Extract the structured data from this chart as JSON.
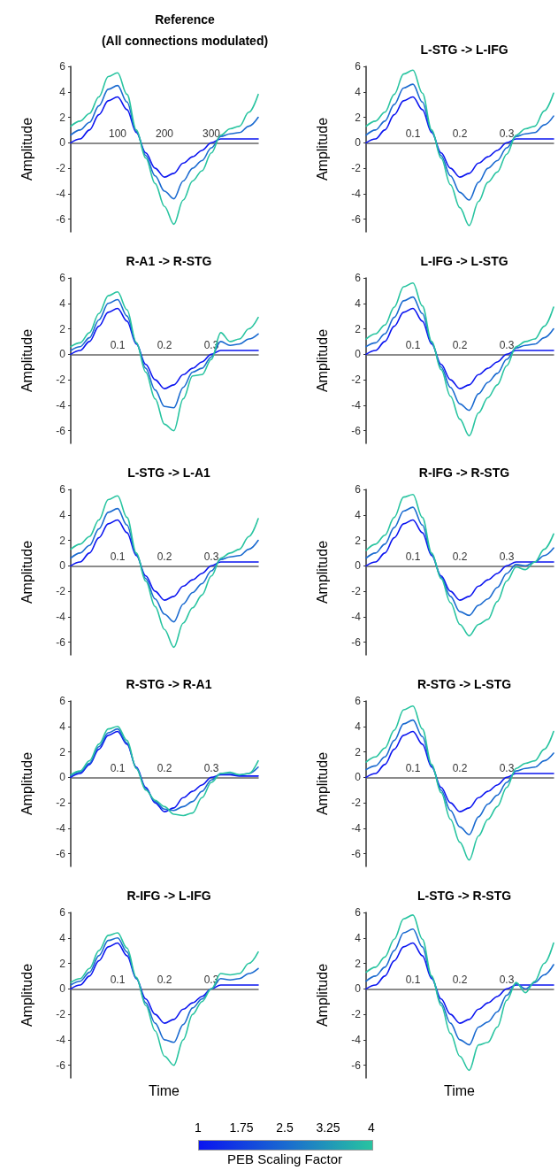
{
  "chart_data": [
    {
      "type": "line",
      "title": "Reference",
      "subtitle": "(All connections modulated)",
      "ylabel": "Amplitude",
      "x": [
        0,
        20,
        40,
        60,
        80,
        100,
        120,
        140,
        160,
        180,
        200,
        220,
        240,
        260,
        280,
        300,
        320,
        340,
        360,
        380,
        400
      ],
      "xlim": [
        0,
        400
      ],
      "xticks": [
        100,
        200,
        300
      ],
      "ylim": [
        -7,
        6
      ],
      "yticks": [
        -6,
        -4,
        -2,
        0,
        2,
        4,
        6
      ],
      "grid": false,
      "marker": "none",
      "line_style": "solid",
      "series": [
        {
          "color": "#0a14f0",
          "values": [
            0,
            0.3,
            1.0,
            2.2,
            3.3,
            3.6,
            2.6,
            0.8,
            -0.8,
            -2.0,
            -2.7,
            -2.4,
            -1.6,
            -1.1,
            -0.6,
            0,
            0.3,
            0.3,
            0.3,
            0.3,
            0.3
          ]
        },
        {
          "color": "#1a6ad0",
          "values": [
            0.6,
            1.0,
            1.6,
            2.9,
            4.2,
            4.5,
            3.2,
            0.9,
            -1.0,
            -2.6,
            -3.8,
            -4.4,
            -3.0,
            -2.0,
            -1.4,
            -0.4,
            0.5,
            0.7,
            0.8,
            1.3,
            2.0
          ]
        },
        {
          "color": "#28c4a0",
          "values": [
            1.3,
            1.7,
            2.3,
            3.6,
            5.2,
            5.5,
            3.8,
            1.0,
            -1.2,
            -3.2,
            -5.0,
            -6.4,
            -4.5,
            -3.0,
            -2.2,
            -0.8,
            0.6,
            1.1,
            1.3,
            2.4,
            3.8
          ]
        }
      ]
    },
    {
      "type": "line",
      "title": "L-STG -> L-IFG",
      "ylabel": "Amplitude",
      "x": [
        0,
        0.02,
        0.04,
        0.06,
        0.08,
        0.1,
        0.12,
        0.14,
        0.16,
        0.18,
        0.2,
        0.22,
        0.24,
        0.26,
        0.28,
        0.3,
        0.32,
        0.34,
        0.36,
        0.38,
        0.4
      ],
      "xlim": [
        0,
        0.4
      ],
      "xticks": [
        0.1,
        0.2,
        0.3
      ],
      "ylim": [
        -7,
        6
      ],
      "yticks": [
        -6,
        -4,
        -2,
        0,
        2,
        4,
        6
      ],
      "grid": false,
      "marker": "none",
      "line_style": "solid",
      "series": [
        {
          "color": "#0a14f0",
          "values": [
            0,
            0.3,
            1.0,
            2.2,
            3.3,
            3.6,
            2.6,
            0.8,
            -0.8,
            -2.0,
            -2.7,
            -2.4,
            -1.6,
            -1.1,
            -0.6,
            0,
            0.3,
            0.3,
            0.3,
            0.3,
            0.3
          ]
        },
        {
          "color": "#1a6ad0",
          "values": [
            0.6,
            1.0,
            1.7,
            3.0,
            4.3,
            4.6,
            3.2,
            0.9,
            -1.0,
            -2.6,
            -3.9,
            -4.5,
            -3.1,
            -2.0,
            -1.4,
            -0.4,
            0.5,
            0.7,
            0.8,
            1.4,
            2.1
          ]
        },
        {
          "color": "#28c4a0",
          "values": [
            1.3,
            1.7,
            2.4,
            3.8,
            5.4,
            5.7,
            3.9,
            1.0,
            -1.2,
            -3.3,
            -5.1,
            -6.5,
            -4.6,
            -3.1,
            -2.3,
            -0.9,
            0.6,
            1.1,
            1.3,
            2.5,
            3.9
          ]
        }
      ]
    },
    {
      "type": "line",
      "title": "R-A1 -> R-STG",
      "ylabel": "Amplitude",
      "x": [
        0,
        0.02,
        0.04,
        0.06,
        0.08,
        0.1,
        0.12,
        0.14,
        0.16,
        0.18,
        0.2,
        0.22,
        0.24,
        0.26,
        0.28,
        0.3,
        0.32,
        0.34,
        0.36,
        0.38,
        0.4
      ],
      "xlim": [
        0,
        0.4
      ],
      "xticks": [
        0.1,
        0.2,
        0.3
      ],
      "ylim": [
        -7,
        6
      ],
      "yticks": [
        -6,
        -4,
        -2,
        0,
        2,
        4,
        6
      ],
      "grid": false,
      "marker": "none",
      "line_style": "solid",
      "series": [
        {
          "color": "#0a14f0",
          "values": [
            0,
            0.3,
            1.0,
            2.2,
            3.3,
            3.6,
            2.6,
            0.8,
            -0.8,
            -2.0,
            -2.7,
            -2.4,
            -1.6,
            -1.1,
            -0.6,
            0,
            0.3,
            0.3,
            0.3,
            0.3,
            0.3
          ]
        },
        {
          "color": "#1a6ad0",
          "values": [
            0.3,
            0.6,
            1.3,
            2.7,
            4.0,
            4.3,
            3.0,
            0.9,
            -1.1,
            -2.8,
            -4.1,
            -4.2,
            -2.6,
            -1.4,
            -1.1,
            -0.2,
            1.0,
            0.7,
            0.8,
            1.2,
            1.6
          ]
        },
        {
          "color": "#28c4a0",
          "values": [
            0.6,
            0.9,
            1.7,
            3.2,
            4.6,
            4.9,
            3.5,
            0.9,
            -1.4,
            -3.5,
            -5.5,
            -6.0,
            -3.5,
            -1.7,
            -1.6,
            -0.4,
            1.7,
            1.0,
            1.2,
            2.0,
            2.9
          ]
        }
      ]
    },
    {
      "type": "line",
      "title": "L-IFG -> L-STG",
      "ylabel": "Amplitude",
      "x": [
        0,
        0.02,
        0.04,
        0.06,
        0.08,
        0.1,
        0.12,
        0.14,
        0.16,
        0.18,
        0.2,
        0.22,
        0.24,
        0.26,
        0.28,
        0.3,
        0.32,
        0.34,
        0.36,
        0.38,
        0.4
      ],
      "xlim": [
        0,
        0.4
      ],
      "xticks": [
        0.1,
        0.2,
        0.3
      ],
      "ylim": [
        -7,
        6
      ],
      "yticks": [
        -6,
        -4,
        -2,
        0,
        2,
        4,
        6
      ],
      "grid": false,
      "marker": "none",
      "line_style": "solid",
      "series": [
        {
          "color": "#0a14f0",
          "values": [
            0,
            0.3,
            1.0,
            2.2,
            3.3,
            3.6,
            2.6,
            0.8,
            -0.8,
            -2.0,
            -2.7,
            -2.4,
            -1.6,
            -1.1,
            -0.6,
            0,
            0.3,
            0.3,
            0.3,
            0.3,
            0.3
          ]
        },
        {
          "color": "#1a6ad0",
          "values": [
            0.6,
            0.9,
            1.6,
            2.9,
            4.2,
            4.5,
            3.2,
            0.9,
            -1.0,
            -2.6,
            -3.9,
            -4.4,
            -3.1,
            -2.2,
            -1.5,
            -0.4,
            0.5,
            0.7,
            0.8,
            1.3,
            2.0
          ]
        },
        {
          "color": "#28c4a0",
          "values": [
            1.2,
            1.6,
            2.3,
            3.7,
            5.3,
            5.6,
            3.8,
            1.0,
            -1.2,
            -3.3,
            -5.1,
            -6.4,
            -4.6,
            -3.4,
            -2.4,
            -0.9,
            0.6,
            1.0,
            1.2,
            2.2,
            3.7
          ]
        }
      ]
    },
    {
      "type": "line",
      "title": "L-STG -> L-A1",
      "ylabel": "Amplitude",
      "x": [
        0,
        0.02,
        0.04,
        0.06,
        0.08,
        0.1,
        0.12,
        0.14,
        0.16,
        0.18,
        0.2,
        0.22,
        0.24,
        0.26,
        0.28,
        0.3,
        0.32,
        0.34,
        0.36,
        0.38,
        0.4
      ],
      "xlim": [
        0,
        0.4
      ],
      "xticks": [
        0.1,
        0.2,
        0.3
      ],
      "ylim": [
        -7,
        6
      ],
      "yticks": [
        -6,
        -4,
        -2,
        0,
        2,
        4,
        6
      ],
      "grid": false,
      "marker": "none",
      "line_style": "solid",
      "series": [
        {
          "color": "#0a14f0",
          "values": [
            0,
            0.3,
            1.0,
            2.2,
            3.3,
            3.6,
            2.6,
            0.8,
            -0.8,
            -2.0,
            -2.7,
            -2.4,
            -1.6,
            -1.1,
            -0.6,
            0,
            0.3,
            0.3,
            0.3,
            0.3,
            0.3
          ]
        },
        {
          "color": "#1a6ad0",
          "values": [
            0.6,
            1.0,
            1.6,
            2.9,
            4.2,
            4.5,
            3.2,
            0.9,
            -1.0,
            -2.6,
            -3.8,
            -4.4,
            -3.0,
            -2.1,
            -1.4,
            -0.4,
            0.5,
            0.7,
            0.8,
            1.3,
            2.0
          ]
        },
        {
          "color": "#28c4a0",
          "values": [
            1.3,
            1.7,
            2.3,
            3.6,
            5.2,
            5.5,
            3.8,
            1.0,
            -1.2,
            -3.2,
            -5.0,
            -6.4,
            -4.5,
            -3.3,
            -2.3,
            -0.8,
            0.6,
            1.0,
            1.3,
            2.3,
            3.7
          ]
        }
      ]
    },
    {
      "type": "line",
      "title": "R-IFG -> R-STG",
      "ylabel": "Amplitude",
      "x": [
        0,
        0.02,
        0.04,
        0.06,
        0.08,
        0.1,
        0.12,
        0.14,
        0.16,
        0.18,
        0.2,
        0.22,
        0.24,
        0.26,
        0.28,
        0.3,
        0.32,
        0.34,
        0.36,
        0.38,
        0.4
      ],
      "xlim": [
        0,
        0.4
      ],
      "xticks": [
        0.1,
        0.2,
        0.3
      ],
      "ylim": [
        -7,
        6
      ],
      "yticks": [
        -6,
        -4,
        -2,
        0,
        2,
        4,
        6
      ],
      "grid": false,
      "marker": "none",
      "line_style": "solid",
      "series": [
        {
          "color": "#0a14f0",
          "values": [
            0,
            0.3,
            1.0,
            2.2,
            3.3,
            3.6,
            2.6,
            0.8,
            -0.8,
            -2.0,
            -2.7,
            -2.4,
            -1.6,
            -1.1,
            -0.6,
            0,
            0.3,
            0.3,
            0.3,
            0.3,
            0.3
          ]
        },
        {
          "color": "#1a6ad0",
          "values": [
            0.6,
            1.0,
            1.7,
            3.0,
            4.3,
            4.6,
            3.2,
            0.9,
            -0.9,
            -2.4,
            -3.6,
            -3.9,
            -3.1,
            -2.6,
            -1.7,
            -0.6,
            0.1,
            0.0,
            0.3,
            0.8,
            1.4
          ]
        },
        {
          "color": "#28c4a0",
          "values": [
            1.2,
            1.7,
            2.4,
            3.8,
            5.4,
            5.6,
            3.8,
            1.0,
            -1.0,
            -2.9,
            -4.6,
            -5.5,
            -4.6,
            -4.2,
            -2.8,
            -1.2,
            -0.1,
            -0.3,
            0.3,
            1.3,
            2.5
          ]
        }
      ]
    },
    {
      "type": "line",
      "title": "R-STG -> R-A1",
      "ylabel": "Amplitude",
      "x": [
        0,
        0.02,
        0.04,
        0.06,
        0.08,
        0.1,
        0.12,
        0.14,
        0.16,
        0.18,
        0.2,
        0.22,
        0.24,
        0.26,
        0.28,
        0.3,
        0.32,
        0.34,
        0.36,
        0.38,
        0.4
      ],
      "xlim": [
        0,
        0.4
      ],
      "xticks": [
        0.1,
        0.2,
        0.3
      ],
      "ylim": [
        -7,
        6
      ],
      "yticks": [
        -6,
        -4,
        -2,
        0,
        2,
        4,
        6
      ],
      "grid": false,
      "marker": "none",
      "line_style": "solid",
      "series": [
        {
          "color": "#0a14f0",
          "values": [
            0,
            0.3,
            1.0,
            2.2,
            3.3,
            3.6,
            2.6,
            0.8,
            -0.8,
            -2.0,
            -2.7,
            -2.4,
            -1.6,
            -1.1,
            -0.6,
            0,
            0.2,
            0.2,
            0.1,
            0.1,
            0.1
          ]
        },
        {
          "color": "#1a6ad0",
          "values": [
            0.1,
            0.4,
            1.1,
            2.4,
            3.5,
            3.8,
            2.7,
            0.7,
            -0.9,
            -1.9,
            -2.5,
            -2.6,
            -2.3,
            -1.9,
            -1.1,
            -0.2,
            0.3,
            0.3,
            0.2,
            0.3,
            0.8
          ]
        },
        {
          "color": "#28c4a0",
          "values": [
            0.2,
            0.5,
            1.3,
            2.6,
            3.8,
            4.0,
            2.9,
            0.7,
            -1.0,
            -1.8,
            -2.3,
            -2.9,
            -3.0,
            -2.8,
            -1.6,
            -0.4,
            0.3,
            0.4,
            0.2,
            0.3,
            1.3
          ]
        }
      ]
    },
    {
      "type": "line",
      "title": "R-STG -> L-STG",
      "ylabel": "Amplitude",
      "x": [
        0,
        0.02,
        0.04,
        0.06,
        0.08,
        0.1,
        0.12,
        0.14,
        0.16,
        0.18,
        0.2,
        0.22,
        0.24,
        0.26,
        0.28,
        0.3,
        0.32,
        0.34,
        0.36,
        0.38,
        0.4
      ],
      "xlim": [
        0,
        0.4
      ],
      "xticks": [
        0.1,
        0.2,
        0.3
      ],
      "ylim": [
        -7,
        6
      ],
      "yticks": [
        -6,
        -4,
        -2,
        0,
        2,
        4,
        6
      ],
      "grid": false,
      "marker": "none",
      "line_style": "solid",
      "series": [
        {
          "color": "#0a14f0",
          "values": [
            0,
            0.3,
            1.0,
            2.2,
            3.3,
            3.6,
            2.6,
            0.8,
            -0.8,
            -2.0,
            -2.7,
            -2.4,
            -1.6,
            -1.1,
            -0.6,
            0,
            0.3,
            0.3,
            0.3,
            0.3,
            0.3
          ]
        },
        {
          "color": "#1a6ad0",
          "values": [
            0.6,
            0.9,
            1.6,
            2.9,
            4.2,
            4.5,
            3.2,
            0.9,
            -1.0,
            -2.6,
            -3.9,
            -4.5,
            -3.1,
            -2.1,
            -1.4,
            -0.4,
            0.5,
            0.7,
            0.8,
            1.3,
            1.9
          ]
        },
        {
          "color": "#28c4a0",
          "values": [
            1.2,
            1.6,
            2.3,
            3.7,
            5.3,
            5.6,
            3.8,
            1.0,
            -1.2,
            -3.3,
            -5.1,
            -6.5,
            -4.6,
            -3.3,
            -2.3,
            -0.8,
            0.7,
            1.1,
            1.3,
            2.2,
            3.6
          ]
        }
      ]
    },
    {
      "type": "line",
      "title": "R-IFG -> L-IFG",
      "ylabel": "Amplitude",
      "xlabel": "Time",
      "x": [
        0,
        0.02,
        0.04,
        0.06,
        0.08,
        0.1,
        0.12,
        0.14,
        0.16,
        0.18,
        0.2,
        0.22,
        0.24,
        0.26,
        0.28,
        0.3,
        0.32,
        0.34,
        0.36,
        0.38,
        0.4
      ],
      "xlim": [
        0,
        0.4
      ],
      "xticks": [
        0.1,
        0.2,
        0.3
      ],
      "ylim": [
        -7,
        6
      ],
      "yticks": [
        -6,
        -4,
        -2,
        0,
        2,
        4,
        6
      ],
      "grid": false,
      "marker": "none",
      "line_style": "solid",
      "series": [
        {
          "color": "#0a14f0",
          "values": [
            0,
            0.3,
            1.0,
            2.2,
            3.3,
            3.6,
            2.6,
            0.8,
            -0.8,
            -2.0,
            -2.7,
            -2.4,
            -1.6,
            -1.1,
            -0.6,
            0,
            0.3,
            0.3,
            0.3,
            0.3,
            0.3
          ]
        },
        {
          "color": "#1a6ad0",
          "values": [
            0.3,
            0.6,
            1.3,
            2.6,
            3.8,
            4.0,
            2.9,
            0.8,
            -1.1,
            -2.7,
            -4.0,
            -4.2,
            -2.8,
            -1.5,
            -0.8,
            0.0,
            0.8,
            0.7,
            0.8,
            1.2,
            1.6
          ]
        },
        {
          "color": "#28c4a0",
          "values": [
            0.5,
            0.8,
            1.6,
            3.0,
            4.2,
            4.4,
            3.2,
            0.9,
            -1.3,
            -3.3,
            -5.3,
            -6.0,
            -4.0,
            -2.0,
            -1.0,
            0.0,
            1.2,
            1.1,
            1.2,
            2.0,
            2.9
          ]
        }
      ]
    },
    {
      "type": "line",
      "title": "L-STG -> R-STG",
      "ylabel": "Amplitude",
      "xlabel": "Time",
      "clabel": "PEB Scaling Factor",
      "clim": [
        1,
        4
      ],
      "cticks": [
        1,
        1.75,
        2.5,
        3.25,
        4
      ],
      "x": [
        0,
        0.02,
        0.04,
        0.06,
        0.08,
        0.1,
        0.12,
        0.14,
        0.16,
        0.18,
        0.2,
        0.22,
        0.24,
        0.26,
        0.28,
        0.3,
        0.32,
        0.34,
        0.36,
        0.38,
        0.4
      ],
      "xlim": [
        0,
        0.4
      ],
      "xticks": [
        0.1,
        0.2,
        0.3
      ],
      "ylim": [
        -7,
        6
      ],
      "yticks": [
        -6,
        -4,
        -2,
        0,
        2,
        4,
        6
      ],
      "grid": false,
      "marker": "none",
      "line_style": "solid",
      "series": [
        {
          "color": "#0a14f0",
          "values": [
            0,
            0.3,
            1.0,
            2.2,
            3.3,
            3.6,
            2.6,
            0.8,
            -0.8,
            -2.0,
            -2.7,
            -2.4,
            -1.6,
            -1.1,
            -0.6,
            0,
            0.3,
            0.3,
            0.3,
            0.3,
            0.3
          ]
        },
        {
          "color": "#1a6ad0",
          "values": [
            0.6,
            1.0,
            1.7,
            3.0,
            4.4,
            4.7,
            3.3,
            0.9,
            -1.1,
            -2.7,
            -4.0,
            -4.4,
            -3.0,
            -2.6,
            -1.8,
            -0.5,
            0.4,
            0.0,
            0.5,
            1.1,
            1.9
          ]
        },
        {
          "color": "#28c4a0",
          "values": [
            1.3,
            1.7,
            2.5,
            3.9,
            5.5,
            5.8,
            3.9,
            1.0,
            -1.3,
            -3.5,
            -5.3,
            -6.4,
            -4.4,
            -4.2,
            -3.0,
            -0.9,
            0.5,
            -0.3,
            0.6,
            2.0,
            3.6
          ]
        }
      ]
    }
  ]
}
